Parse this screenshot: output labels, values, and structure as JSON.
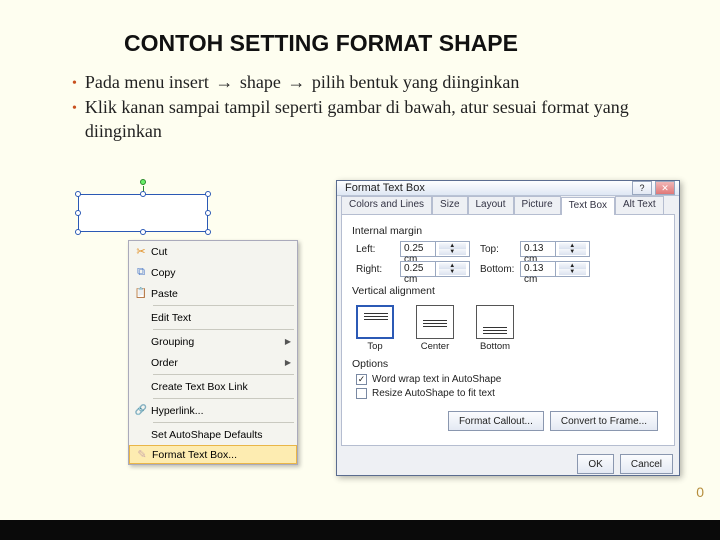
{
  "slide": {
    "title": "CONTOH SETTING FORMAT SHAPE",
    "bullet_color": "#c8501e",
    "page_number": "0",
    "bullets": [
      {
        "parts": [
          "Pada menu insert ",
          "→",
          " shape ",
          "→",
          " pilih bentuk yang diinginkan"
        ]
      },
      {
        "parts": [
          "Klik kanan sampai tampil seperti gambar di bawah, atur sesuai format yang diinginkan"
        ]
      }
    ]
  },
  "context_menu": {
    "items": [
      {
        "icon": "cut",
        "label": "Cut"
      },
      {
        "icon": "copy",
        "label": "Copy"
      },
      {
        "icon": "paste",
        "label": "Paste"
      }
    ],
    "edit_text": "Edit Text",
    "grouping": "Grouping",
    "order": "Order",
    "create_link": "Create Text Box Link",
    "hyperlink": "Hyperlink...",
    "set_defaults": "Set AutoShape Defaults",
    "format_textbox": "Format Text Box...",
    "highlighted": "format_textbox"
  },
  "dialog": {
    "title": "Format Text Box",
    "tabs": [
      "Colors and Lines",
      "Size",
      "Layout",
      "Picture",
      "Text Box",
      "Alt Text"
    ],
    "active_tab": 4,
    "internal_margin_label": "Internal margin",
    "fields": {
      "left": {
        "label": "Left:",
        "value": "0.25 cm"
      },
      "right": {
        "label": "Right:",
        "value": "0.25 cm"
      },
      "top": {
        "label": "Top:",
        "value": "0.13 cm"
      },
      "bottom": {
        "label": "Bottom:",
        "value": "0.13 cm"
      }
    },
    "valign_label": "Vertical alignment",
    "valign": [
      {
        "label": "Top",
        "pos": "top",
        "selected": true
      },
      {
        "label": "Center",
        "pos": "center",
        "selected": false
      },
      {
        "label": "Bottom",
        "pos": "bottom",
        "selected": false
      }
    ],
    "options_label": "Options",
    "checks": [
      {
        "label": "Word wrap text in AutoShape",
        "checked": true
      },
      {
        "label": "Resize AutoShape to fit text",
        "checked": false
      }
    ],
    "buttons": {
      "format_callout": "Format Callout...",
      "convert_frame": "Convert to Frame...",
      "ok": "OK",
      "cancel": "Cancel"
    }
  }
}
